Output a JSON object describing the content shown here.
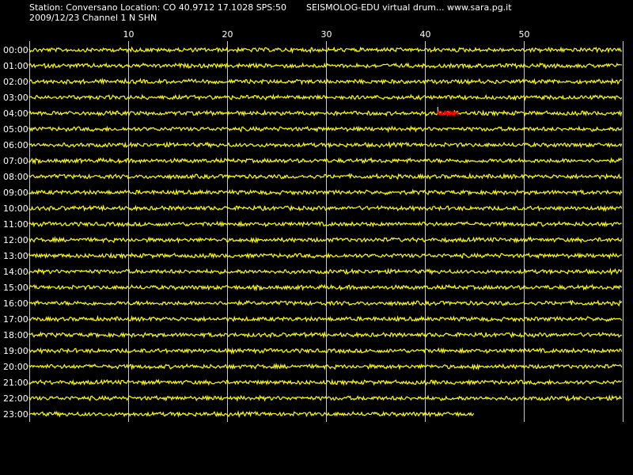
{
  "header": {
    "station_line": "Station: Conversano Location: CO 40.9712 17.1028 SPS:50",
    "brand_line": "SEISMOLOG-EDU virtual drum... www.sara.pg.it",
    "date_line": "2009/12/23  Channel 1 N SHN"
  },
  "drum": {
    "minute_ticks": [
      "10",
      "20",
      "30",
      "40",
      "50"
    ],
    "hours": [
      "00:00",
      "01:00",
      "02:00",
      "03:00",
      "04:00",
      "05:00",
      "06:00",
      "07:00",
      "08:00",
      "09:00",
      "10:00",
      "11:00",
      "12:00",
      "13:00",
      "14:00",
      "15:00",
      "16:00",
      "17:00",
      "18:00",
      "19:00",
      "20:00",
      "21:00",
      "22:00",
      "23:00"
    ],
    "last_trace_end_minute": 45,
    "event": {
      "hour": "04:00",
      "start_minute": 41.3,
      "end_minute": 43.4
    }
  },
  "colors": {
    "background": "#000000",
    "trace": "#ffff00",
    "event": "#ff0000",
    "grid": "#c8c8c8",
    "text": "#ffffff"
  }
}
